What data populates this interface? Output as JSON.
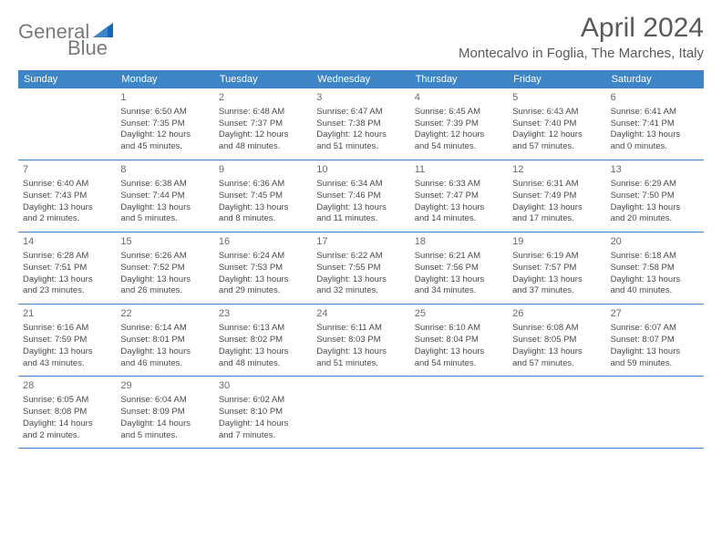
{
  "logo": {
    "text_left": "General",
    "text_right": "Blue"
  },
  "title": "April 2024",
  "location": "Montecalvo in Foglia, The Marches, Italy",
  "colors": {
    "header_bg": "#3d85c6",
    "header_text": "#ffffff",
    "page_bg": "#ffffff",
    "title_color": "#5a5a5a",
    "cell_text": "#4a4a4a",
    "border": "#3d85c6"
  },
  "typography": {
    "title_fontsize": 30,
    "location_fontsize": 15,
    "header_fontsize": 11,
    "daynum_fontsize": 11,
    "cell_fontsize": 9.5
  },
  "day_names": [
    "Sunday",
    "Monday",
    "Tuesday",
    "Wednesday",
    "Thursday",
    "Friday",
    "Saturday"
  ],
  "weeks": [
    [
      null,
      {
        "n": "1",
        "sr": "Sunrise: 6:50 AM",
        "ss": "Sunset: 7:35 PM",
        "d1": "Daylight: 12 hours",
        "d2": "and 45 minutes."
      },
      {
        "n": "2",
        "sr": "Sunrise: 6:48 AM",
        "ss": "Sunset: 7:37 PM",
        "d1": "Daylight: 12 hours",
        "d2": "and 48 minutes."
      },
      {
        "n": "3",
        "sr": "Sunrise: 6:47 AM",
        "ss": "Sunset: 7:38 PM",
        "d1": "Daylight: 12 hours",
        "d2": "and 51 minutes."
      },
      {
        "n": "4",
        "sr": "Sunrise: 6:45 AM",
        "ss": "Sunset: 7:39 PM",
        "d1": "Daylight: 12 hours",
        "d2": "and 54 minutes."
      },
      {
        "n": "5",
        "sr": "Sunrise: 6:43 AM",
        "ss": "Sunset: 7:40 PM",
        "d1": "Daylight: 12 hours",
        "d2": "and 57 minutes."
      },
      {
        "n": "6",
        "sr": "Sunrise: 6:41 AM",
        "ss": "Sunset: 7:41 PM",
        "d1": "Daylight: 13 hours",
        "d2": "and 0 minutes."
      }
    ],
    [
      {
        "n": "7",
        "sr": "Sunrise: 6:40 AM",
        "ss": "Sunset: 7:43 PM",
        "d1": "Daylight: 13 hours",
        "d2": "and 2 minutes."
      },
      {
        "n": "8",
        "sr": "Sunrise: 6:38 AM",
        "ss": "Sunset: 7:44 PM",
        "d1": "Daylight: 13 hours",
        "d2": "and 5 minutes."
      },
      {
        "n": "9",
        "sr": "Sunrise: 6:36 AM",
        "ss": "Sunset: 7:45 PM",
        "d1": "Daylight: 13 hours",
        "d2": "and 8 minutes."
      },
      {
        "n": "10",
        "sr": "Sunrise: 6:34 AM",
        "ss": "Sunset: 7:46 PM",
        "d1": "Daylight: 13 hours",
        "d2": "and 11 minutes."
      },
      {
        "n": "11",
        "sr": "Sunrise: 6:33 AM",
        "ss": "Sunset: 7:47 PM",
        "d1": "Daylight: 13 hours",
        "d2": "and 14 minutes."
      },
      {
        "n": "12",
        "sr": "Sunrise: 6:31 AM",
        "ss": "Sunset: 7:49 PM",
        "d1": "Daylight: 13 hours",
        "d2": "and 17 minutes."
      },
      {
        "n": "13",
        "sr": "Sunrise: 6:29 AM",
        "ss": "Sunset: 7:50 PM",
        "d1": "Daylight: 13 hours",
        "d2": "and 20 minutes."
      }
    ],
    [
      {
        "n": "14",
        "sr": "Sunrise: 6:28 AM",
        "ss": "Sunset: 7:51 PM",
        "d1": "Daylight: 13 hours",
        "d2": "and 23 minutes."
      },
      {
        "n": "15",
        "sr": "Sunrise: 6:26 AM",
        "ss": "Sunset: 7:52 PM",
        "d1": "Daylight: 13 hours",
        "d2": "and 26 minutes."
      },
      {
        "n": "16",
        "sr": "Sunrise: 6:24 AM",
        "ss": "Sunset: 7:53 PM",
        "d1": "Daylight: 13 hours",
        "d2": "and 29 minutes."
      },
      {
        "n": "17",
        "sr": "Sunrise: 6:22 AM",
        "ss": "Sunset: 7:55 PM",
        "d1": "Daylight: 13 hours",
        "d2": "and 32 minutes."
      },
      {
        "n": "18",
        "sr": "Sunrise: 6:21 AM",
        "ss": "Sunset: 7:56 PM",
        "d1": "Daylight: 13 hours",
        "d2": "and 34 minutes."
      },
      {
        "n": "19",
        "sr": "Sunrise: 6:19 AM",
        "ss": "Sunset: 7:57 PM",
        "d1": "Daylight: 13 hours",
        "d2": "and 37 minutes."
      },
      {
        "n": "20",
        "sr": "Sunrise: 6:18 AM",
        "ss": "Sunset: 7:58 PM",
        "d1": "Daylight: 13 hours",
        "d2": "and 40 minutes."
      }
    ],
    [
      {
        "n": "21",
        "sr": "Sunrise: 6:16 AM",
        "ss": "Sunset: 7:59 PM",
        "d1": "Daylight: 13 hours",
        "d2": "and 43 minutes."
      },
      {
        "n": "22",
        "sr": "Sunrise: 6:14 AM",
        "ss": "Sunset: 8:01 PM",
        "d1": "Daylight: 13 hours",
        "d2": "and 46 minutes."
      },
      {
        "n": "23",
        "sr": "Sunrise: 6:13 AM",
        "ss": "Sunset: 8:02 PM",
        "d1": "Daylight: 13 hours",
        "d2": "and 48 minutes."
      },
      {
        "n": "24",
        "sr": "Sunrise: 6:11 AM",
        "ss": "Sunset: 8:03 PM",
        "d1": "Daylight: 13 hours",
        "d2": "and 51 minutes."
      },
      {
        "n": "25",
        "sr": "Sunrise: 6:10 AM",
        "ss": "Sunset: 8:04 PM",
        "d1": "Daylight: 13 hours",
        "d2": "and 54 minutes."
      },
      {
        "n": "26",
        "sr": "Sunrise: 6:08 AM",
        "ss": "Sunset: 8:05 PM",
        "d1": "Daylight: 13 hours",
        "d2": "and 57 minutes."
      },
      {
        "n": "27",
        "sr": "Sunrise: 6:07 AM",
        "ss": "Sunset: 8:07 PM",
        "d1": "Daylight: 13 hours",
        "d2": "and 59 minutes."
      }
    ],
    [
      {
        "n": "28",
        "sr": "Sunrise: 6:05 AM",
        "ss": "Sunset: 8:08 PM",
        "d1": "Daylight: 14 hours",
        "d2": "and 2 minutes."
      },
      {
        "n": "29",
        "sr": "Sunrise: 6:04 AM",
        "ss": "Sunset: 8:09 PM",
        "d1": "Daylight: 14 hours",
        "d2": "and 5 minutes."
      },
      {
        "n": "30",
        "sr": "Sunrise: 6:02 AM",
        "ss": "Sunset: 8:10 PM",
        "d1": "Daylight: 14 hours",
        "d2": "and 7 minutes."
      },
      null,
      null,
      null,
      null
    ]
  ]
}
